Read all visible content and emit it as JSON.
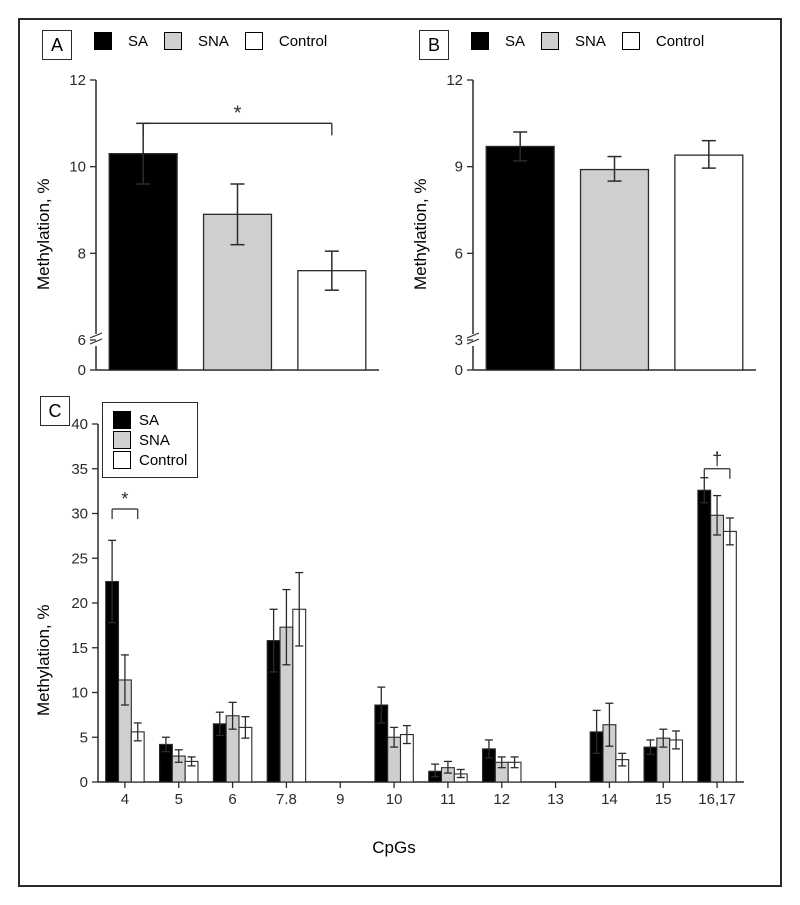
{
  "global": {
    "legend": [
      "SA",
      "SNA",
      "Control"
    ],
    "colors": {
      "SA": "#000000",
      "SNA": "#cfcfcf",
      "Control": "#ffffff",
      "axis": "#2b2b2b",
      "border": "#2b2b2b",
      "tick": "#2b2b2b",
      "bg": "#ffffff"
    },
    "stroke_width": 1.5,
    "errorbar_width": 1.5,
    "errorbar_cap": 8,
    "font_family": "Arial",
    "label_fontsize_pt": 12,
    "axis_title_fontsize_pt": 13
  },
  "panelA": {
    "label": "A",
    "type": "bar",
    "y_title": "Methylation, %",
    "ylim": [
      0,
      12
    ],
    "yticks": [
      0,
      6,
      8,
      10,
      12
    ],
    "bars": [
      {
        "group": "SA",
        "value": 10.3,
        "err_low": 0.7,
        "err_high": 0.7
      },
      {
        "group": "SNA",
        "value": 8.9,
        "err_low": 0.7,
        "err_high": 0.7
      },
      {
        "group": "Control",
        "value": 7.6,
        "err_low": 0.45,
        "err_high": 0.45
      }
    ],
    "bar_width": 0.72,
    "sig": {
      "symbol": "*",
      "from_idx": 0,
      "to_idx": 2,
      "y": 11.0
    }
  },
  "panelB": {
    "label": "B",
    "type": "bar",
    "y_title": "Methylation, %",
    "ylim": [
      0,
      12
    ],
    "yticks": [
      0,
      3,
      6,
      9,
      12
    ],
    "bars": [
      {
        "group": "SA",
        "value": 9.7,
        "err_low": 0.5,
        "err_high": 0.5
      },
      {
        "group": "SNA",
        "value": 8.9,
        "err_low": 0.4,
        "err_high": 0.45
      },
      {
        "group": "Control",
        "value": 9.4,
        "err_low": 0.45,
        "err_high": 0.5
      }
    ],
    "bar_width": 0.72
  },
  "panelC": {
    "label": "C",
    "type": "grouped-bar",
    "y_title": "Methylation, %",
    "x_title": "CpGs",
    "ylim": [
      0,
      40
    ],
    "yticks": [
      0,
      5,
      10,
      15,
      20,
      25,
      30,
      35,
      40
    ],
    "categories": [
      "4",
      "5",
      "6",
      "7.8",
      "9",
      "10",
      "11",
      "12",
      "13",
      "14",
      "15",
      "16,17"
    ],
    "series": [
      "SA",
      "SNA",
      "Control"
    ],
    "data": {
      "4": {
        "SA": [
          22.4,
          4.6,
          4.6
        ],
        "SNA": [
          11.4,
          2.8,
          2.8
        ],
        "Control": [
          5.6,
          1.0,
          1.0
        ]
      },
      "5": {
        "SA": [
          4.2,
          0.8,
          0.8
        ],
        "SNA": [
          2.9,
          0.7,
          0.7
        ],
        "Control": [
          2.3,
          0.5,
          0.5
        ]
      },
      "6": {
        "SA": [
          6.5,
          1.3,
          1.3
        ],
        "SNA": [
          7.4,
          1.5,
          1.5
        ],
        "Control": [
          6.1,
          1.2,
          1.2
        ]
      },
      "7.8": {
        "SA": [
          15.8,
          3.5,
          3.5
        ],
        "SNA": [
          17.3,
          4.2,
          4.2
        ],
        "Control": [
          19.3,
          4.1,
          4.1
        ]
      },
      "9": null,
      "10": {
        "SA": [
          8.6,
          2.0,
          2.0
        ],
        "SNA": [
          5.0,
          1.1,
          1.1
        ],
        "Control": [
          5.3,
          1.0,
          1.0
        ]
      },
      "11": {
        "SA": [
          1.2,
          0.6,
          0.8
        ],
        "SNA": [
          1.6,
          0.6,
          0.7
        ],
        "Control": [
          0.9,
          0.4,
          0.5
        ]
      },
      "12": {
        "SA": [
          3.7,
          1.0,
          1.0
        ],
        "SNA": [
          2.2,
          0.6,
          0.6
        ],
        "Control": [
          2.2,
          0.6,
          0.6
        ]
      },
      "13": null,
      "14": {
        "SA": [
          5.6,
          2.4,
          2.4
        ],
        "SNA": [
          6.4,
          2.4,
          2.4
        ],
        "Control": [
          2.5,
          0.7,
          0.7
        ]
      },
      "15": {
        "SA": [
          3.9,
          0.8,
          0.8
        ],
        "SNA": [
          4.9,
          1.0,
          1.0
        ],
        "Control": [
          4.7,
          1.0,
          1.0
        ]
      },
      "16,17": {
        "SA": [
          32.6,
          1.4,
          1.4
        ],
        "SNA": [
          29.8,
          2.2,
          2.2
        ],
        "Control": [
          28.0,
          1.5,
          1.5
        ]
      }
    },
    "bar_width": 0.28,
    "sig": [
      {
        "symbol": "*",
        "cat": "4",
        "from": "SA",
        "to": "Control",
        "y": 30.5,
        "bracket": true
      },
      {
        "symbol": "†",
        "cat": "16,17",
        "from": "SA",
        "to": "Control",
        "y": 35.0,
        "bracket": true
      }
    ]
  }
}
